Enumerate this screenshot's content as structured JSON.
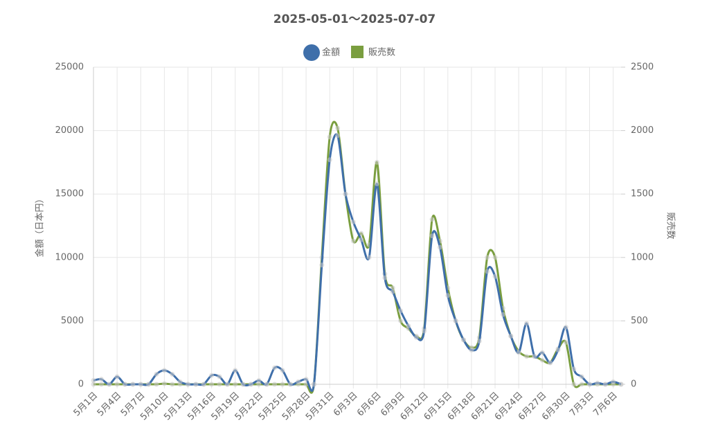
{
  "chart_data": {
    "type": "line",
    "title": "2025-05-01～2025-07-07",
    "y_label": "金額（日本円）",
    "y2_label": "販売数",
    "categories": [
      "5月1日",
      null,
      null,
      "5月4日",
      null,
      null,
      "5月7日",
      null,
      null,
      "5月10日",
      null,
      null,
      "5月13日",
      null,
      null,
      "5月16日",
      null,
      null,
      "5月19日",
      null,
      null,
      "5月22日",
      null,
      null,
      "5月25日",
      null,
      null,
      "5月28日",
      null,
      null,
      "5月31日",
      null,
      null,
      "6月3日",
      null,
      null,
      "6月6日",
      null,
      null,
      "6月9日",
      null,
      null,
      "6月12日",
      null,
      null,
      "6月15日",
      null,
      null,
      "6月18日",
      null,
      null,
      "6月21日",
      null,
      null,
      "6月24日",
      null,
      null,
      "6月27日",
      null,
      null,
      "6月30日",
      null,
      null,
      "7月3日",
      null,
      null,
      "7月6日",
      null
    ],
    "series": [
      {
        "name": "金額",
        "color": "#3f6faa",
        "legend_marker": "circle",
        "values": [
          300,
          400,
          0,
          600,
          0,
          0,
          0,
          0,
          800,
          1100,
          800,
          200,
          0,
          0,
          0,
          700,
          600,
          0,
          1100,
          0,
          0,
          300,
          0,
          1300,
          1100,
          0,
          200,
          400,
          0,
          9400,
          17700,
          19600,
          15000,
          12800,
          11400,
          10000,
          15800,
          8400,
          7300,
          5800,
          4600,
          3700,
          4200,
          11700,
          10800,
          7000,
          5000,
          3500,
          2700,
          3400,
          8900,
          8500,
          5500,
          3800,
          2500,
          4800,
          2200,
          2500,
          1700,
          2700,
          4500,
          1200,
          600,
          0,
          100,
          0,
          200,
          0
        ]
      },
      {
        "name": "販売数",
        "color": "#7a9e3f",
        "legend_marker": "square",
        "axis": "y2",
        "values": [
          0,
          0,
          0,
          0,
          0,
          0,
          0,
          0,
          0,
          5,
          0,
          0,
          0,
          0,
          0,
          0,
          0,
          0,
          0,
          0,
          0,
          0,
          0,
          0,
          0,
          0,
          0,
          0,
          0,
          1000,
          1950,
          2020,
          1500,
          1130,
          1190,
          1100,
          1750,
          870,
          760,
          500,
          440,
          380,
          440,
          1300,
          1130,
          760,
          500,
          350,
          290,
          370,
          1000,
          1000,
          600,
          380,
          260,
          220,
          220,
          190,
          170,
          280,
          330,
          0,
          0,
          0,
          0,
          0,
          0,
          0
        ]
      }
    ],
    "ylim": [
      0,
      25000
    ],
    "yticks": [
      0,
      5000,
      10000,
      15000,
      20000,
      25000
    ],
    "y2lim": [
      0,
      2500
    ],
    "y2ticks": [
      0,
      500,
      1000,
      1500,
      2000,
      2500
    ],
    "grid": true
  }
}
